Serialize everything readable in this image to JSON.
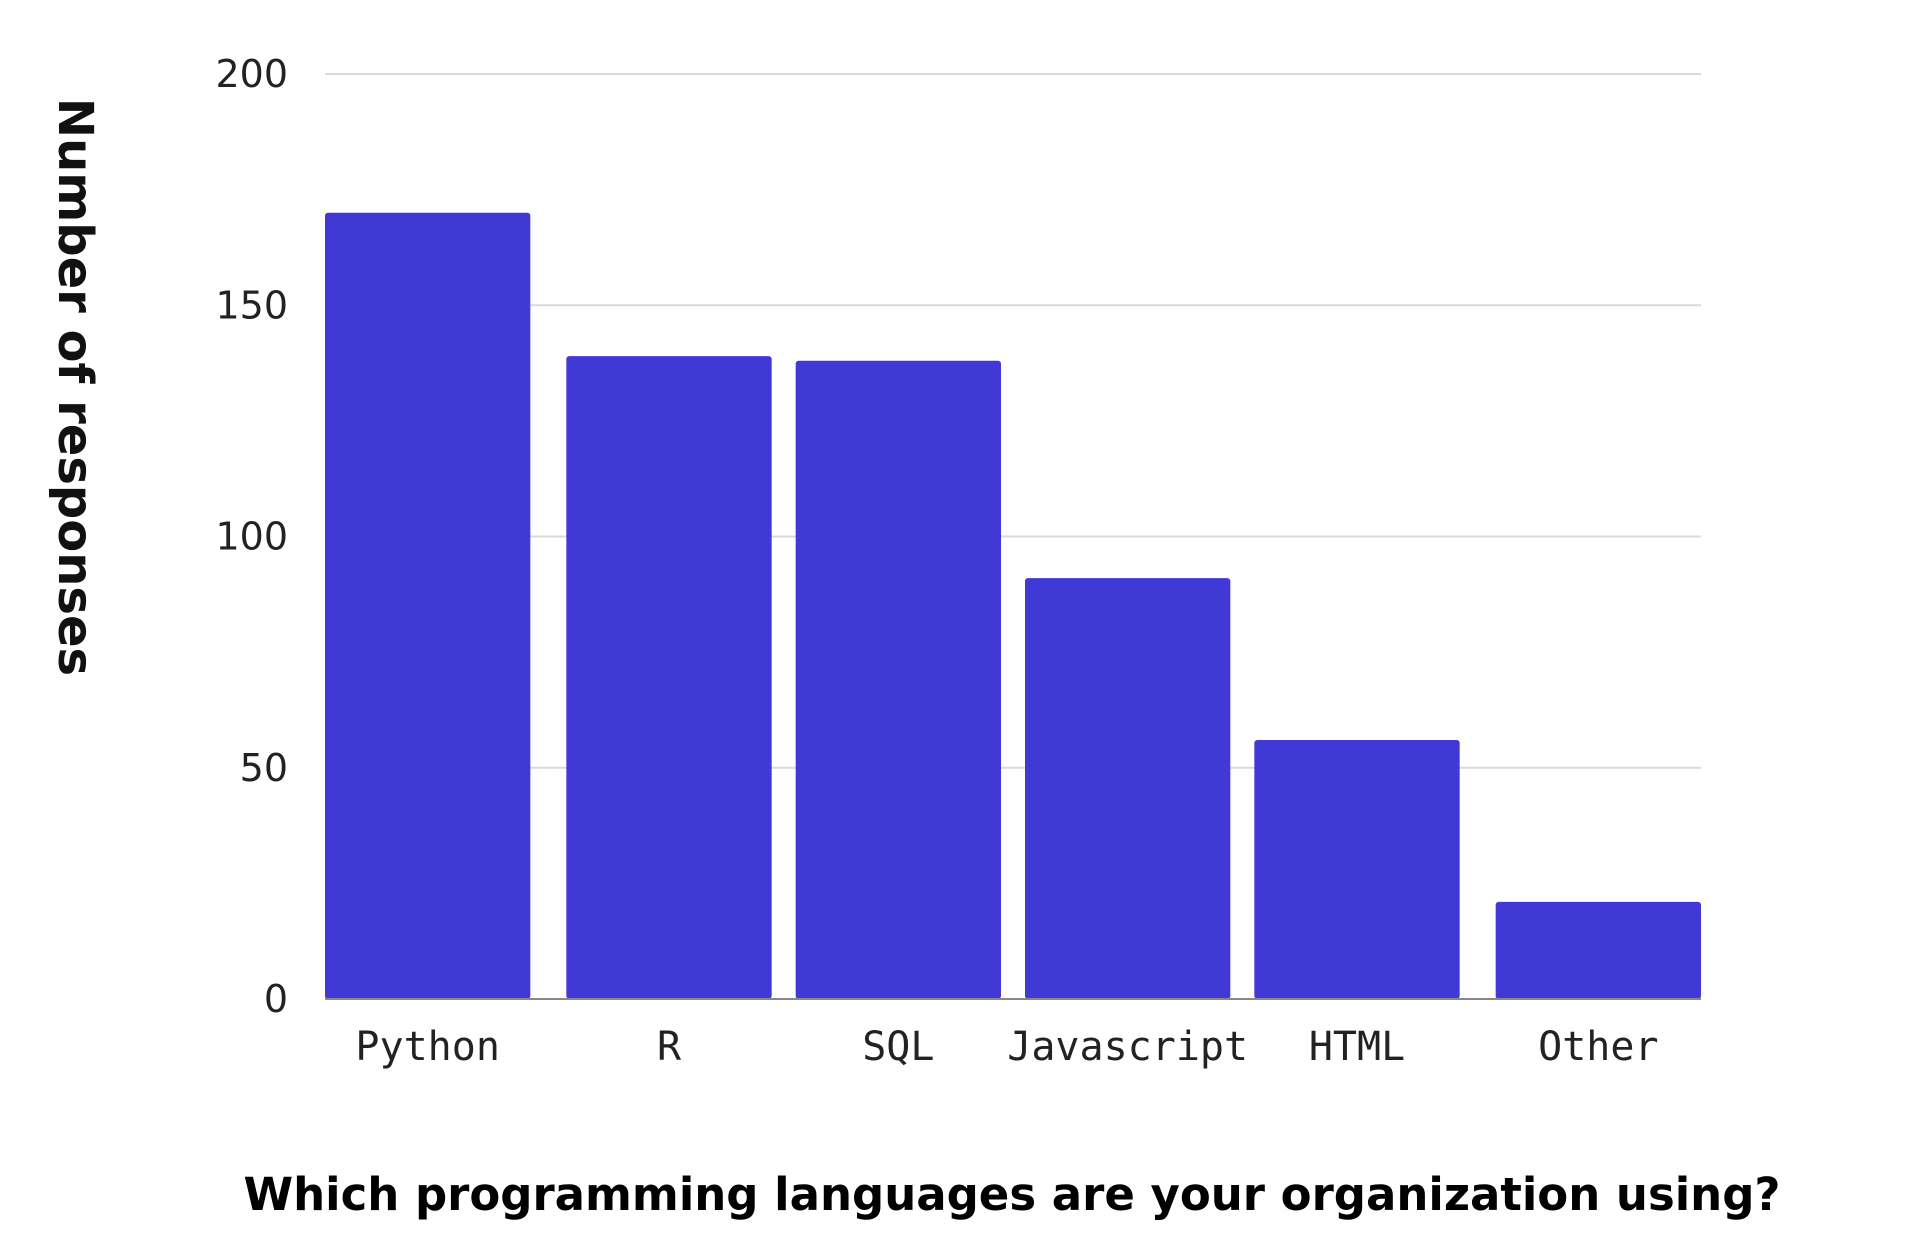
{
  "chart_data": {
    "type": "bar",
    "title": "Which programming languages are your organization using?",
    "xlabel": "",
    "ylabel": "Number of responses",
    "categories": [
      "Python",
      "R",
      "SQL",
      "Javascript",
      "HTML",
      "Other"
    ],
    "values": [
      170,
      139,
      138,
      91,
      56,
      21
    ],
    "ylim": [
      0,
      200
    ],
    "yticks": [
      "0",
      "50",
      "100",
      "150",
      "200"
    ],
    "grid": true,
    "bar_color": "#4039D6",
    "grid_color": "#D9D9D9"
  }
}
